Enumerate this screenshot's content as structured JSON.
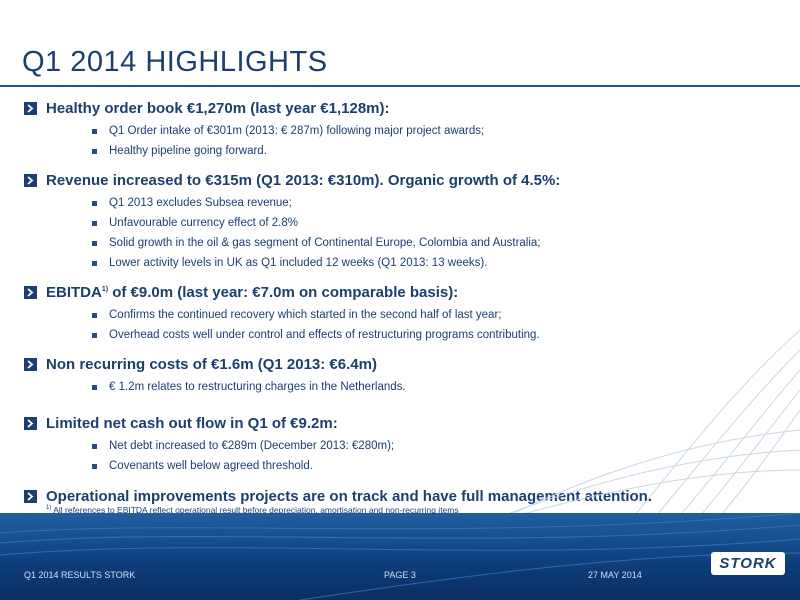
{
  "slide": {
    "title": "Q1 2014 HIGHLIGHTS",
    "sections": [
      {
        "heading": "Healthy order book €1,270m (last year €1,128m):",
        "bullets": [
          "Q1 Order intake of €301m (2013: € 287m) following major project awards;",
          "Healthy pipeline going forward."
        ]
      },
      {
        "heading": "Revenue increased to €315m (Q1 2013: €310m). Organic growth of 4.5%:",
        "bullets": [
          "Q1 2013 excludes Subsea revenue;",
          "Unfavourable currency effect of 2.8%",
          "Solid growth in the oil & gas segment of Continental Europe, Colombia and Australia;",
          "Lower activity levels in UK as Q1 included 12 weeks (Q1 2013: 13 weeks)."
        ]
      },
      {
        "heading_pre": "EBITDA",
        "heading_sup": "1)",
        "heading_post": " of €9.0m (last year: €7.0m on comparable basis):",
        "bullets": [
          "Confirms the continued recovery which started in the second half of last year;",
          "Overhead costs well under control and effects of restructuring programs contributing."
        ]
      },
      {
        "heading": "Non recurring costs of €1.6m (Q1 2013: €6.4m)",
        "bullets": [
          "€ 1.2m relates to restructuring charges in the Netherlands."
        ]
      },
      {
        "heading": "Limited net cash out flow in Q1 of €9.2m:",
        "bullets": [
          "Net debt increased to €289m (December 2013: €280m);",
          "Covenants well below agreed threshold."
        ]
      },
      {
        "heading": "Operational improvements projects are on track and have full management attention.",
        "bullets": []
      }
    ],
    "footnote_marker": "1)",
    "footnote_text": "All references to EBITDA reflect operational result  before  depreciation,  amortisation  and non-recurring  items"
  },
  "footer": {
    "left": "Q1 2014 RESULTS STORK",
    "center": "PAGE 3",
    "right": "27 MAY 2014",
    "logo_text": "STORK"
  },
  "colors": {
    "title": "#1b3f6e",
    "band": "#0d3d7a",
    "rule": "#1b5a9a"
  },
  "icons": {
    "section_marker": "chevron-right-icon",
    "bullet": "square-bullet-icon"
  }
}
